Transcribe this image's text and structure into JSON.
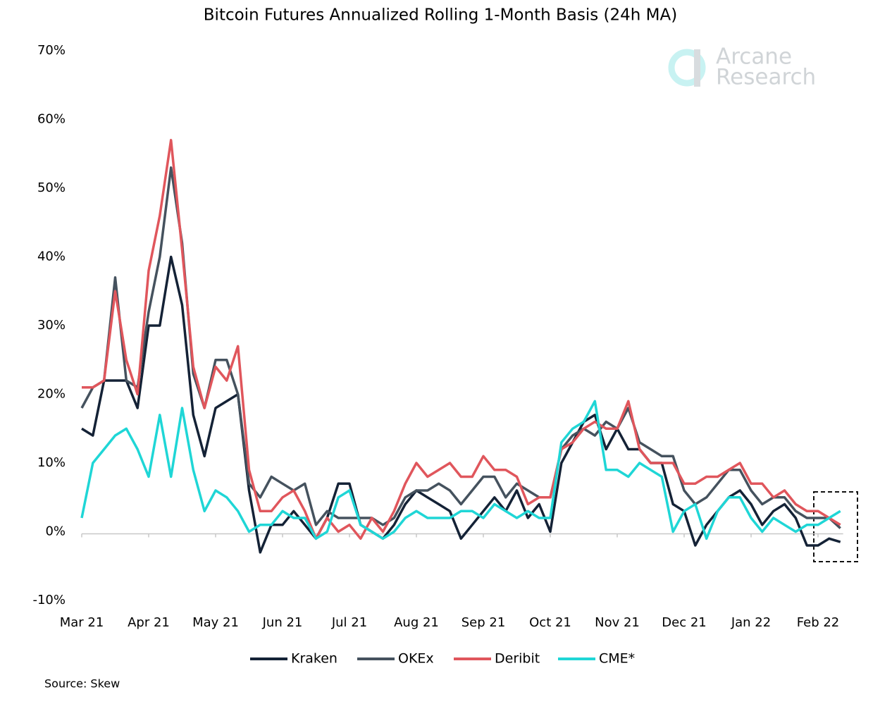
{
  "chart_data": {
    "type": "line",
    "title": "Bitcoin Futures Annualized Rolling 1-Month Basis (24h MA)",
    "source": "Source: Skew",
    "watermark": [
      "Arcane",
      "Research"
    ],
    "categories": [
      "Mar 21",
      null,
      null,
      null,
      null,
      null,
      "Apr 21",
      null,
      null,
      null,
      null,
      null,
      "May 21",
      null,
      null,
      null,
      null,
      null,
      "Jun 21",
      null,
      null,
      null,
      null,
      null,
      "Jul 21",
      null,
      null,
      null,
      null,
      null,
      "Aug 21",
      null,
      null,
      null,
      null,
      null,
      "Sep 21",
      null,
      null,
      null,
      null,
      null,
      "Oct 21",
      null,
      null,
      null,
      null,
      null,
      "Nov 21",
      null,
      null,
      null,
      null,
      null,
      "Dec 21",
      null,
      null,
      null,
      null,
      null,
      "Jan 22",
      null,
      null,
      null,
      null,
      null,
      "Feb 22",
      null,
      null
    ],
    "ylim": [
      -10,
      70
    ],
    "yticks": [
      {
        "value": -10,
        "label": "-10%"
      },
      {
        "value": 0,
        "label": "0%"
      },
      {
        "value": 10,
        "label": "10%"
      },
      {
        "value": 20,
        "label": "20%"
      },
      {
        "value": 30,
        "label": "30%"
      },
      {
        "value": 40,
        "label": "40%"
      },
      {
        "value": 50,
        "label": "50%"
      },
      {
        "value": 60,
        "label": "60%"
      },
      {
        "value": 70,
        "label": "70%"
      }
    ],
    "grid": false,
    "legend": "bottom",
    "series": [
      {
        "name": "Kraken",
        "color": "#142236",
        "values": [
          15,
          14,
          22,
          22,
          22,
          18,
          30,
          30,
          40,
          33,
          17,
          11,
          18,
          19,
          20,
          6,
          -3,
          1,
          1,
          3,
          1,
          -1,
          2,
          7,
          7,
          1,
          0,
          -1,
          1,
          4,
          6,
          5,
          4,
          3,
          -1,
          1,
          3,
          5,
          3,
          6,
          2,
          4,
          0,
          10,
          13,
          16,
          17,
          12,
          15,
          12,
          12,
          10,
          10,
          4,
          3,
          -2,
          1,
          3,
          5,
          6,
          4,
          1,
          3,
          4,
          2,
          -2,
          -2,
          -1,
          -1.5
        ]
      },
      {
        "name": "OKEx",
        "color": "#45525e",
        "values": [
          18,
          21,
          22,
          37,
          22,
          21,
          32,
          40,
          53,
          42,
          23,
          18,
          25,
          25,
          20,
          7,
          5,
          8,
          7,
          6,
          7,
          1,
          3,
          2,
          2,
          2,
          2,
          1,
          2,
          5,
          6,
          6,
          7,
          6,
          4,
          6,
          8,
          8,
          5,
          7,
          6,
          5,
          5,
          12,
          14,
          15,
          14,
          16,
          15,
          18,
          13,
          12,
          11,
          11,
          6,
          4,
          5,
          7,
          9,
          9,
          6,
          4,
          5,
          5,
          3,
          2,
          2,
          2,
          0.5
        ]
      },
      {
        "name": "Deribit",
        "color": "#e0565c",
        "values": [
          21,
          21,
          22,
          35,
          25,
          20,
          38,
          46,
          57,
          41,
          24,
          18,
          24,
          22,
          27,
          9,
          3,
          3,
          5,
          6,
          3,
          -1,
          2,
          0,
          1,
          -1,
          2,
          0,
          3,
          7,
          10,
          8,
          9,
          10,
          8,
          8,
          11,
          9,
          9,
          8,
          4,
          5,
          5,
          12,
          13,
          15,
          16,
          15,
          15,
          19,
          12,
          10,
          10,
          10,
          7,
          7,
          8,
          8,
          9,
          10,
          7,
          7,
          5,
          6,
          4,
          3,
          3,
          2,
          1
        ]
      },
      {
        "name": "CME*",
        "color": "#1fd6d6",
        "values": [
          2,
          10,
          12,
          14,
          15,
          12,
          8,
          17,
          8,
          18,
          9,
          3,
          6,
          5,
          3,
          0,
          1,
          1,
          3,
          2,
          2,
          -1,
          0,
          5,
          6,
          1,
          0,
          -1,
          0,
          2,
          3,
          2,
          2,
          2,
          3,
          3,
          2,
          4,
          3,
          2,
          3,
          2,
          2,
          13,
          15,
          16,
          19,
          9,
          9,
          8,
          10,
          9,
          8,
          0,
          3,
          4,
          -1,
          3,
          5,
          5,
          2,
          0,
          2,
          1,
          0,
          1,
          1,
          2,
          3
        ]
      }
    ]
  }
}
